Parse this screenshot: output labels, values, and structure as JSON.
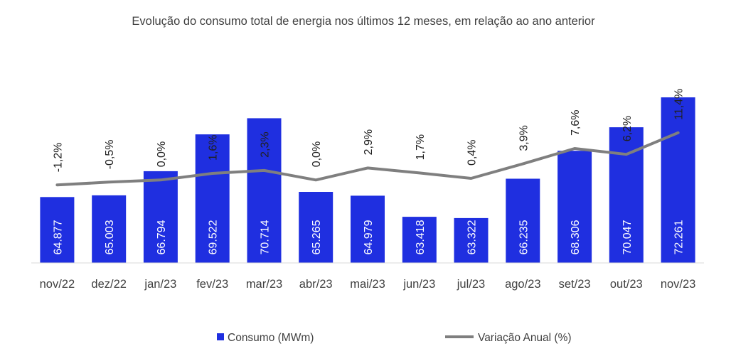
{
  "chart_data": {
    "type": "bar",
    "title": "Evolução do consumo total de energia nos últimos 12 meses, em relação ao ano anterior",
    "categories": [
      "nov/22",
      "dez/22",
      "jan/23",
      "fev/23",
      "mar/23",
      "abr/23",
      "mai/23",
      "jun/23",
      "jul/23",
      "ago/23",
      "set/23",
      "out/23",
      "nov/23"
    ],
    "series": [
      {
        "name": "Consumo (MWm)",
        "type": "bar",
        "values": [
          64877,
          65003,
          66794,
          69522,
          70714,
          65265,
          64979,
          63418,
          63322,
          66235,
          68306,
          70047,
          72261
        ],
        "labels": [
          "64.877",
          "65.003",
          "66.794",
          "69.522",
          "70.714",
          "65.265",
          "64.979",
          "63.418",
          "63.322",
          "66.235",
          "68.306",
          "70.047",
          "72.261"
        ],
        "color": "#1f2fe0"
      },
      {
        "name": "Variação Anual (%)",
        "type": "line",
        "values": [
          -1.2,
          -0.5,
          0.0,
          1.6,
          2.3,
          0.0,
          2.9,
          1.7,
          0.4,
          3.9,
          7.6,
          6.2,
          11.4
        ],
        "labels": [
          "-1,2%",
          "-0,5%",
          "0,0%",
          "1,6%",
          "2,3%",
          "0,0%",
          "2,9%",
          "1,7%",
          "0,4%",
          "3,9%",
          "7,6%",
          "6,2%",
          "11,4%"
        ],
        "color": "#7f7f7f"
      }
    ],
    "bar_axis_range": [
      60000,
      75000
    ],
    "line_axis_range": [
      -20,
      40
    ],
    "grid": false,
    "legend": "bottom"
  }
}
